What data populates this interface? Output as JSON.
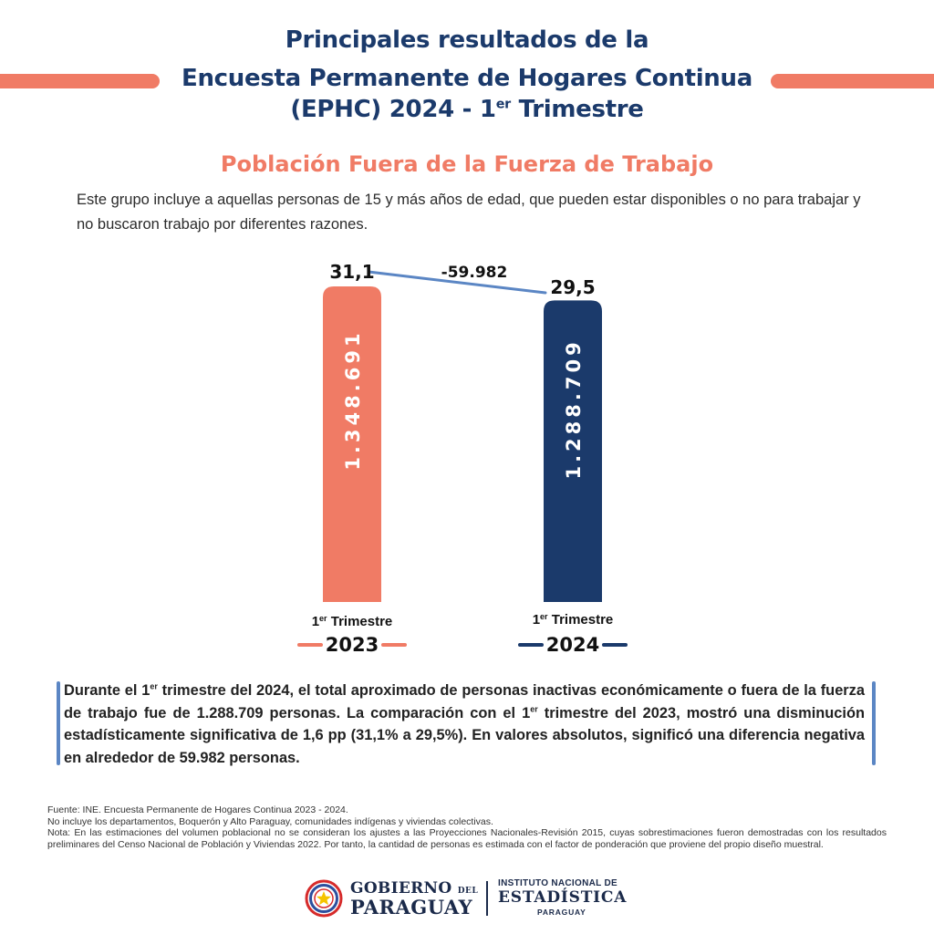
{
  "header": {
    "title_line1": "Principales resultados de la",
    "title_line2": "Encuesta Permanente de Hogares Continua",
    "title_line3_pre": "(EPHC) 2024 - 1",
    "title_line3_sup": "er",
    "title_line3_post": " Trimestre",
    "subtitle": "Población Fuera de la Fuerza de Trabajo",
    "description": "Este grupo incluye a aquellas personas de 15 y más años de edad, que pueden estar disponibles o no para trabajar y no buscaron trabajo por diferentes razones.",
    "accent_color": "#f07b65",
    "title_color": "#1b3a6b"
  },
  "chart_data": {
    "type": "bar",
    "categories": [
      {
        "quarter_num": "1",
        "quarter_sup": "er",
        "quarter_word": " Trimestre",
        "year": "2023"
      },
      {
        "quarter_num": "1",
        "quarter_sup": "er",
        "quarter_word": " Trimestre",
        "year": "2024"
      }
    ],
    "values": [
      1348691,
      1288709
    ],
    "value_labels": [
      "1.348.691",
      "1.288.709"
    ],
    "rate_labels": [
      "31,1",
      "29,5"
    ],
    "rates": [
      31.1,
      29.5
    ],
    "difference_label": "-59.982",
    "colors": [
      "#f07b65",
      "#1b3a6b"
    ],
    "connector_color": "#5b86c4"
  },
  "summary": {
    "line1_pre": "Durante el 1",
    "line1_sup": "er",
    "line1_post": " trimestre del 2024, el total aproximado de personas inactivas económicamente o fuera de la fuerza de trabajo fue de 1.288.709 personas. La comparación con el 1",
    "line2_sup": "er",
    "line2_post": " trimestre del 2023, mostró una disminución estadísticamente significativa de 1,6 pp (31,1% a 29,5%). En valores absolutos, significó una diferencia negativa en alrededor de 59.982 personas."
  },
  "notes": {
    "source": "Fuente: INE. Encuesta Permanente de Hogares Continua 2023 - 2024.",
    "note1": "No incluye los departamentos, Boquerón y Alto Paraguay, comunidades indígenas y viviendas colectivas.",
    "note2": "Nota: En las estimaciones del volumen poblacional no se consideran los ajustes a las Proyecciones Nacionales-Revisión 2015, cuyas sobrestimaciones fueron demostradas con los resultados preliminares del Censo Nacional de Población y Viviendas 2022. Por tanto, la cantidad de personas es estimada con el factor de ponderación que proviene del propio diseño muestral."
  },
  "footer": {
    "gob_line1_a": "GOBIERNO",
    "gob_line1_b": "DEL",
    "gob_line2": "PARAGUAY",
    "ine_line1": "INSTITUTO NACIONAL DE",
    "ine_line2": "ESTADÍSTICA",
    "ine_line3": "PARAGUAY"
  }
}
